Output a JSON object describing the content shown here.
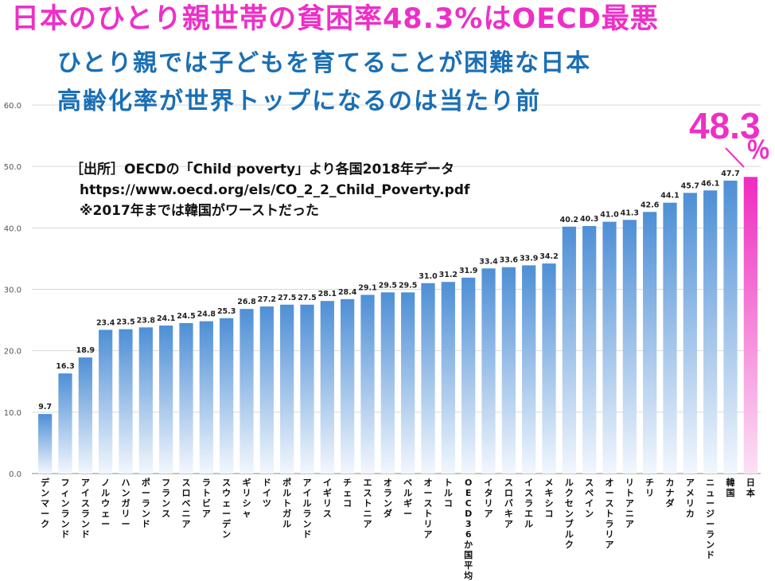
{
  "titles": {
    "line1": "日本のひとり親世帯の貧困率48.3%はOECD最悪",
    "line2": "ひとり親では子どもを育てることが困難な日本",
    "line3": "高齢化率が世界トップになるのは当たり前"
  },
  "source": {
    "line1": "［出所］OECDの「Child poverty」より各国2018年データ",
    "line2": "https://www.oecd.org/els/CO_2_2_Child_Poverty.pdf",
    "line3": "※2017年までは韓国がワーストだった"
  },
  "highlight": {
    "value": "48.3",
    "unit": "％"
  },
  "colors": {
    "bar_top": "#4e8fd6",
    "bar_bottom": "#f2f7fd",
    "highlight_top": "#f02bbf",
    "highlight_bottom": "#fbe2f4",
    "title_pink": "#ee2fc7",
    "title_blue": "#1a6fb5"
  },
  "chart_data": {
    "type": "bar",
    "title": "日本のひとり親世帯の貧困率48.3%はOECD最悪",
    "xlabel": "",
    "ylabel": "",
    "ylim": [
      0,
      60
    ],
    "yticks": [
      "0.0",
      "10.0",
      "20.0",
      "30.0",
      "40.0",
      "50.0",
      "60.0"
    ],
    "highlight_category": "日本",
    "categories": [
      "デンマーク",
      "フィンランド",
      "アイスランド",
      "ノルウェー",
      "ハンガリー",
      "ポーランド",
      "フランス",
      "スロベニア",
      "ラトビア",
      "スウェーデン",
      "ギリシャ",
      "ドイツ",
      "ポルトガル",
      "アイルランド",
      "イギリス",
      "チェコ",
      "エストニア",
      "オランダ",
      "ベルギー",
      "オーストリア",
      "トルコ",
      "OECD36か国平均",
      "イタリア",
      "スロバキア",
      "イスラエル",
      "メキシコ",
      "ルクセンブルク",
      "スペイン",
      "オーストラリア",
      "リトアニア",
      "チリ",
      "カナダ",
      "アメリカ",
      "ニュージーランド",
      "韓国",
      "日本"
    ],
    "values": [
      9.7,
      16.3,
      18.9,
      23.4,
      23.5,
      23.8,
      24.1,
      24.5,
      24.8,
      25.3,
      26.8,
      27.2,
      27.5,
      27.5,
      28.1,
      28.4,
      29.1,
      29.5,
      29.5,
      31.0,
      31.2,
      31.9,
      33.4,
      33.6,
      33.9,
      34.2,
      40.2,
      40.3,
      41.0,
      41.3,
      42.6,
      44.1,
      45.7,
      46.1,
      47.7,
      48.3
    ],
    "labels": [
      "9.7",
      "16.3",
      "18.9",
      "23.4",
      "23.5",
      "23.8",
      "24.1",
      "24.5",
      "24.8",
      "25.3",
      "26.8",
      "27.2",
      "27.5",
      "27.5",
      "28.1",
      "28.4",
      "29.1",
      "29.5",
      "29.5",
      "31.0",
      "31.2",
      "31.9",
      "33.4",
      "33.6",
      "33.9",
      "34.2",
      "40.2",
      "40.3",
      "41.0",
      "41.3",
      "42.6",
      "44.1",
      "45.7",
      "46.1",
      "47.7",
      ""
    ]
  }
}
